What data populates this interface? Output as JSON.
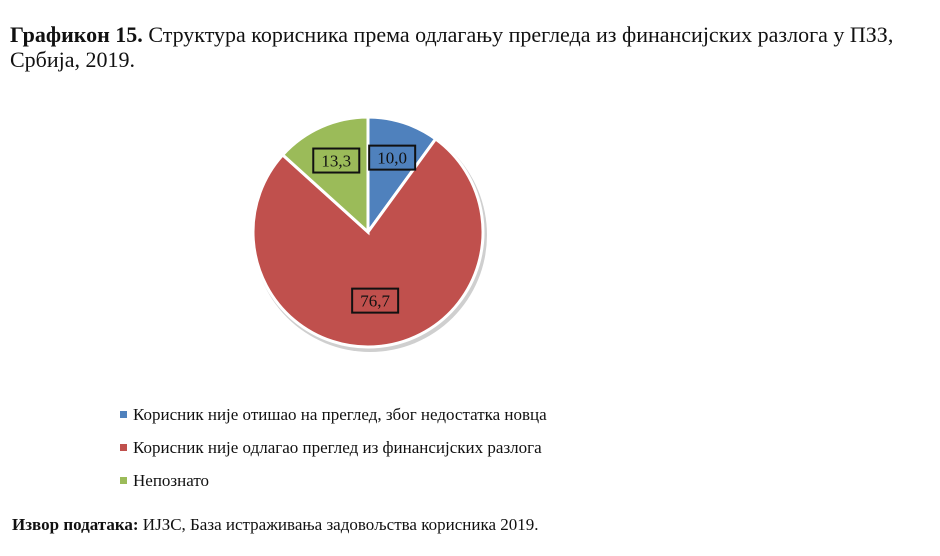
{
  "caption": {
    "label": "Графикон 15.",
    "text": " Структура корисника према одлагању прегледа из финансијских разлога у ПЗЗ, Србија, 2019."
  },
  "chart_data": {
    "type": "pie",
    "categories": [
      "Корисник није отишао на преглед, због недостатка новца",
      "Корисник није одлагао преглед из финансијских разлога",
      "Непознато"
    ],
    "values": [
      10.0,
      76.7,
      13.3
    ],
    "value_labels": [
      "10,0",
      "76,7",
      "13,3"
    ],
    "colors": [
      "#4f81bd",
      "#c0504d",
      "#9bbb59"
    ],
    "legend_position": "bottom"
  },
  "source": {
    "label": "Извор података:",
    "text": " ИЈЗС, База истраживања задовољства корисника 2019."
  }
}
